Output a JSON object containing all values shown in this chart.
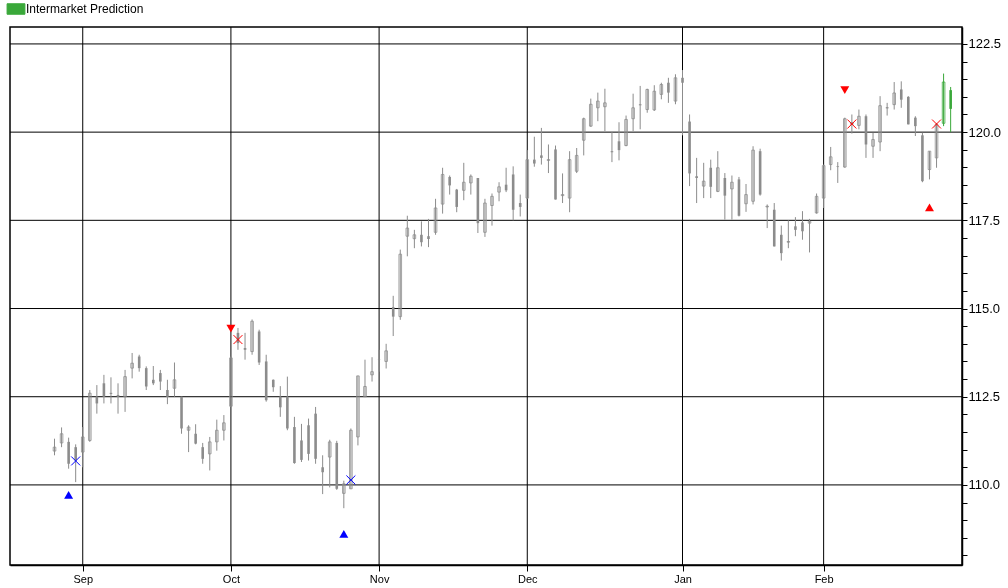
{
  "chart_data": {
    "type": "candlestick",
    "ylim": [
      107.73,
      122.98
    ],
    "categories": [
      null,
      null,
      null,
      null,
      "Sep",
      null,
      null,
      null,
      null,
      null,
      null,
      null,
      null,
      null,
      null,
      null,
      null,
      null,
      null,
      null,
      null,
      null,
      null,
      null,
      null,
      "Oct",
      null,
      null,
      null,
      null,
      null,
      null,
      null,
      null,
      null,
      null,
      null,
      null,
      null,
      null,
      null,
      null,
      null,
      null,
      null,
      null,
      "Nov",
      null,
      null,
      null,
      null,
      null,
      null,
      null,
      null,
      null,
      null,
      null,
      null,
      null,
      null,
      null,
      null,
      null,
      null,
      null,
      null,
      "Dec",
      null,
      null,
      null,
      null,
      null,
      null,
      null,
      null,
      null,
      null,
      null,
      null,
      null,
      null,
      null,
      null,
      null,
      null,
      null,
      null,
      null,
      "Jan",
      null,
      null,
      null,
      null,
      null,
      null,
      null,
      null,
      null,
      null,
      null,
      null,
      null,
      null,
      null,
      null,
      null,
      null,
      null,
      "Feb",
      null,
      null,
      null,
      null,
      null,
      null,
      null,
      null,
      null,
      null,
      null,
      null,
      null,
      null,
      null,
      null,
      null,
      null
    ],
    "yticks": [
      {
        "value": 108,
        "label": null
      },
      {
        "value": 108.5,
        "label": null
      },
      {
        "value": 109,
        "label": null
      },
      {
        "value": 109.5,
        "label": null
      },
      {
        "value": 110,
        "label": "110.0"
      },
      {
        "value": 110.5,
        "label": null
      },
      {
        "value": 111,
        "label": null
      },
      {
        "value": 111.5,
        "label": null
      },
      {
        "value": 112,
        "label": null
      },
      {
        "value": 112.5,
        "label": "112.5"
      },
      {
        "value": 113,
        "label": null
      },
      {
        "value": 113.5,
        "label": null
      },
      {
        "value": 114,
        "label": null
      },
      {
        "value": 114.5,
        "label": null
      },
      {
        "value": 115,
        "label": "115.0"
      },
      {
        "value": 115.5,
        "label": null
      },
      {
        "value": 116,
        "label": null
      },
      {
        "value": 116.5,
        "label": null
      },
      {
        "value": 117,
        "label": null
      },
      {
        "value": 117.5,
        "label": "117.5"
      },
      {
        "value": 118,
        "label": null
      },
      {
        "value": 118.5,
        "label": null
      },
      {
        "value": 119,
        "label": null
      },
      {
        "value": 119.5,
        "label": null
      },
      {
        "value": 120,
        "label": "120.0"
      },
      {
        "value": 120.5,
        "label": null
      },
      {
        "value": 121,
        "label": null
      },
      {
        "value": 121.5,
        "label": null
      },
      {
        "value": 122,
        "label": null
      },
      {
        "value": 122.5,
        "label": "122.5"
      }
    ],
    "grid": true,
    "legend": "top left",
    "series": [
      {
        "type": "candlestick",
        "color": "#8c8c8c",
        "ohlc": [
          [
            110.96,
            111.31,
            110.84,
            111.07
          ],
          [
            111.19,
            111.63,
            111.07,
            111.45
          ],
          [
            111.22,
            111.34,
            110.46,
            110.6
          ],
          [
            111.07,
            111.15,
            110.08,
            110.69
          ],
          [
            110.93,
            111.64,
            110.5,
            111.36
          ],
          [
            111.26,
            112.69,
            111.22,
            112.6
          ],
          [
            112.5,
            112.83,
            112.02,
            112.31
          ],
          [
            112.88,
            113.12,
            112.31,
            112.5
          ],
          [
            112.61,
            113.05,
            112.31,
            112.58
          ],
          [
            112.55,
            112.88,
            112.02,
            112.5
          ],
          [
            112.5,
            113.26,
            112.07,
            113.07
          ],
          [
            113.31,
            113.74,
            113.02,
            113.45
          ],
          [
            113.64,
            113.69,
            113.21,
            113.31
          ],
          [
            113.31,
            113.36,
            112.69,
            112.79
          ],
          [
            112.98,
            113.37,
            112.83,
            112.88
          ],
          [
            113.17,
            113.26,
            112.69,
            112.93
          ],
          [
            112.69,
            112.98,
            112.29,
            112.5
          ],
          [
            112.74,
            113.47,
            112.5,
            112.98
          ],
          [
            112.5,
            112.5,
            111.45,
            111.6
          ],
          [
            111.55,
            111.69,
            110.93,
            111.64
          ],
          [
            111.45,
            111.72,
            111.15,
            111.17
          ],
          [
            111.07,
            111.19,
            110.6,
            110.74
          ],
          [
            110.88,
            111.36,
            110.41,
            111.22
          ],
          [
            111.22,
            111.85,
            110.97,
            111.55
          ],
          [
            111.55,
            111.98,
            111.26,
            111.76
          ],
          [
            112.23,
            113.64,
            112.21,
            113.6
          ],
          [
            114.31,
            114.45,
            113.83,
            114.02
          ],
          [
            113.88,
            114.31,
            113.55,
            113.83
          ],
          [
            113.78,
            114.69,
            113.69,
            114.64
          ],
          [
            114.35,
            114.4,
            113.4,
            113.47
          ],
          [
            113.5,
            113.69,
            112.36,
            112.4
          ],
          [
            112.98,
            112.99,
            112.64,
            112.77
          ],
          [
            112.5,
            112.8,
            111.93,
            112.2
          ],
          [
            112.5,
            113.07,
            111.55,
            111.6
          ],
          [
            111.64,
            111.93,
            110.6,
            110.62
          ],
          [
            111.26,
            111.73,
            110.65,
            110.71
          ],
          [
            111.69,
            111.88,
            110.69,
            110.88
          ],
          [
            112.02,
            112.21,
            110.6,
            110.74
          ],
          [
            110.5,
            110.84,
            109.74,
            110.36
          ],
          [
            110.79,
            111.28,
            109.93,
            111.22
          ],
          [
            111.19,
            111.25,
            109.86,
            109.89
          ],
          [
            109.76,
            110.12,
            109.34,
            110.03
          ],
          [
            109.89,
            111.6,
            109.89,
            111.55
          ],
          [
            111.36,
            113.09,
            111.12,
            113.09
          ],
          [
            112.5,
            113.55,
            112.5,
            112.79
          ],
          [
            113.12,
            113.62,
            112.93,
            113.21
          ],
          [
            113.56,
            113.83,
            113.21,
            113.55
          ],
          [
            113.5,
            114.0,
            113.3,
            113.8
          ],
          [
            115.04,
            115.36,
            114.22,
            114.77
          ],
          [
            114.77,
            116.67,
            114.68,
            116.54
          ],
          [
            117.05,
            117.63,
            116.48,
            117.28
          ],
          [
            116.98,
            117.23,
            116.71,
            117.09
          ],
          [
            117.09,
            117.47,
            116.76,
            116.88
          ],
          [
            117.05,
            117.54,
            116.74,
            116.97
          ],
          [
            117.16,
            118.11,
            117.09,
            117.85
          ],
          [
            117.96,
            118.99,
            117.69,
            118.8
          ],
          [
            118.73,
            118.77,
            118.23,
            118.49
          ],
          [
            118.37,
            118.39,
            117.73,
            117.88
          ],
          [
            118.35,
            119.13,
            118.07,
            118.58
          ],
          [
            118.56,
            118.8,
            118.23,
            118.75
          ],
          [
            118.7,
            118.7,
            117.14,
            117.42
          ],
          [
            117.16,
            118.11,
            117.03,
            117.99
          ],
          [
            117.92,
            118.26,
            117.35,
            118.18
          ],
          [
            118.3,
            118.58,
            118.04,
            118.45
          ],
          [
            118.51,
            118.99,
            118.3,
            118.35
          ],
          [
            118.8,
            119.03,
            117.5,
            117.8
          ],
          [
            117.99,
            118.23,
            117.61,
            117.88
          ],
          [
            118.13,
            119.49,
            118.11,
            119.22
          ],
          [
            119.22,
            119.87,
            119.02,
            119.11
          ],
          [
            119.34,
            120.12,
            119.08,
            119.27
          ],
          [
            119.2,
            119.65,
            118.84,
            119.22
          ],
          [
            119.51,
            119.62,
            118.09,
            118.09
          ],
          [
            118.2,
            118.83,
            117.99,
            118.23
          ],
          [
            118.13,
            119.46,
            117.73,
            119.22
          ],
          [
            118.89,
            119.55,
            118.84,
            119.34
          ],
          [
            119.77,
            120.41,
            119.34,
            120.38
          ],
          [
            120.17,
            120.95,
            120.15,
            120.79
          ],
          [
            120.69,
            121.12,
            120.31,
            120.88
          ],
          [
            120.72,
            121.23,
            120.03,
            120.83
          ],
          [
            119.46,
            120.0,
            119.15,
            119.43
          ],
          [
            119.74,
            120.28,
            119.2,
            119.49
          ],
          [
            119.62,
            120.47,
            119.6,
            120.36
          ],
          [
            120.38,
            121.09,
            120.03,
            120.69
          ],
          [
            120.79,
            121.31,
            120.08,
            120.76
          ],
          [
            120.64,
            121.23,
            120.55,
            121.21
          ],
          [
            120.63,
            121.33,
            120.6,
            121.16
          ],
          [
            121.07,
            121.4,
            120.93,
            121.35
          ],
          [
            121.4,
            121.54,
            120.83,
            121.12
          ],
          [
            120.88,
            121.64,
            120.79,
            121.54
          ],
          [
            121.54,
            121.76,
            119.91,
            121.4
          ],
          [
            120.3,
            120.5,
            118.47,
            118.83
          ],
          [
            118.75,
            119.27,
            117.99,
            118.7
          ],
          [
            118.47,
            119.13,
            118.13,
            118.61
          ],
          [
            118.99,
            119.22,
            118.13,
            118.45
          ],
          [
            118.32,
            119.46,
            118.3,
            118.99
          ],
          [
            118.7,
            118.84,
            117.52,
            118.2
          ],
          [
            118.39,
            118.77,
            117.52,
            118.58
          ],
          [
            118.66,
            118.73,
            117.61,
            117.63
          ],
          [
            117.97,
            118.53,
            117.74,
            118.23
          ],
          [
            118.04,
            119.6,
            117.95,
            119.49
          ],
          [
            119.46,
            119.53,
            118.2,
            118.23
          ],
          [
            117.88,
            117.95,
            117.28,
            117.9
          ],
          [
            117.8,
            117.99,
            116.76,
            116.76
          ],
          [
            117.09,
            117.35,
            116.36,
            116.57
          ],
          [
            116.88,
            117.5,
            116.71,
            116.9
          ],
          [
            117.33,
            117.59,
            117.05,
            117.23
          ],
          [
            117.44,
            117.76,
            116.95,
            117.19
          ],
          [
            117.42,
            117.54,
            116.59,
            117.47
          ],
          [
            117.71,
            118.26,
            117.69,
            118.18
          ],
          [
            118.13,
            119.08,
            117.85,
            119.05
          ],
          [
            119.08,
            119.58,
            118.92,
            119.3
          ],
          [
            119.03,
            119.15,
            118.56,
            119.01
          ],
          [
            119.01,
            120.41,
            118.99,
            120.38
          ],
          [
            120.22,
            120.5,
            119.96,
            120.27
          ],
          [
            120.19,
            120.64,
            120.08,
            120.45
          ],
          [
            120.45,
            120.5,
            119.27,
            119.65
          ],
          [
            119.6,
            119.98,
            119.27,
            119.79
          ],
          [
            119.72,
            121.02,
            119.46,
            120.75
          ],
          [
            120.69,
            120.83,
            120.47,
            120.69
          ],
          [
            120.78,
            121.42,
            120.64,
            121.11
          ],
          [
            121.21,
            121.44,
            120.69,
            120.92
          ],
          [
            121.0,
            121.02,
            120.22,
            120.22
          ],
          [
            120.41,
            120.45,
            119.89,
            120.17
          ],
          [
            119.91,
            119.98,
            118.58,
            118.61
          ],
          [
            118.94,
            119.46,
            118.66,
            119.46
          ],
          [
            119.27,
            120.26,
            118.99,
            120.22
          ],
          null,
          null
        ]
      },
      {
        "type": "candlestick",
        "name": "Intermarket Prediction",
        "color": "#3aa83a",
        "ohlc": [
          null,
          null,
          null,
          null,
          null,
          null,
          null,
          null,
          null,
          null,
          null,
          null,
          null,
          null,
          null,
          null,
          null,
          null,
          null,
          null,
          null,
          null,
          null,
          null,
          null,
          null,
          null,
          null,
          null,
          null,
          null,
          null,
          null,
          null,
          null,
          null,
          null,
          null,
          null,
          null,
          null,
          null,
          null,
          null,
          null,
          null,
          null,
          null,
          null,
          null,
          null,
          null,
          null,
          null,
          null,
          null,
          null,
          null,
          null,
          null,
          null,
          null,
          null,
          null,
          null,
          null,
          null,
          null,
          null,
          null,
          null,
          null,
          null,
          null,
          null,
          null,
          null,
          null,
          null,
          null,
          null,
          null,
          null,
          null,
          null,
          null,
          null,
          null,
          null,
          null,
          null,
          null,
          null,
          null,
          null,
          null,
          null,
          null,
          null,
          null,
          null,
          null,
          null,
          null,
          null,
          null,
          null,
          null,
          null,
          null,
          null,
          null,
          null,
          null,
          null,
          null,
          null,
          null,
          null,
          null,
          null,
          null,
          null,
          null,
          null,
          null,
          [
            120.25,
            121.66,
            120.17,
            121.42
          ],
          [
            121.19,
            121.28,
            120.0,
            120.66
          ]
        ]
      },
      {
        "type": "scatter",
        "marker": "triangle",
        "color": "#0000ff",
        "values": [
          null,
          null,
          109.72,
          null,
          null,
          null,
          null,
          null,
          null,
          null,
          null,
          null,
          null,
          null,
          null,
          null,
          null,
          null,
          null,
          null,
          null,
          null,
          null,
          null,
          null,
          null,
          null,
          null,
          null,
          null,
          null,
          null,
          null,
          null,
          null,
          null,
          null,
          null,
          null,
          null,
          null,
          108.61,
          null,
          null,
          null,
          null,
          null,
          null,
          null,
          null,
          null,
          null,
          null,
          null,
          null,
          null,
          null,
          null,
          null,
          null,
          null,
          null,
          null,
          null,
          null,
          null,
          null,
          null,
          null,
          null,
          null,
          null,
          null,
          null,
          null,
          null,
          null,
          null,
          null,
          null,
          null,
          null,
          null,
          null,
          null,
          null,
          null,
          null,
          null,
          null,
          null,
          null,
          null,
          null,
          null,
          null,
          null,
          null,
          null,
          null,
          null,
          null,
          null,
          null,
          null,
          null,
          null,
          null,
          null,
          null,
          null,
          null,
          null,
          null,
          null,
          null,
          null,
          null,
          null,
          null,
          null,
          null,
          null,
          null,
          null,
          null,
          null,
          null
        ]
      },
      {
        "type": "scatter",
        "marker": "cross",
        "color": "#0000ff",
        "values": [
          null,
          null,
          null,
          110.68,
          null,
          null,
          null,
          null,
          null,
          null,
          null,
          null,
          null,
          null,
          null,
          null,
          null,
          null,
          null,
          null,
          null,
          null,
          null,
          null,
          null,
          null,
          null,
          null,
          null,
          null,
          null,
          null,
          null,
          null,
          null,
          null,
          null,
          null,
          null,
          null,
          null,
          null,
          110.14,
          null,
          null,
          null,
          null,
          null,
          null,
          null,
          null,
          null,
          null,
          null,
          null,
          null,
          null,
          null,
          null,
          null,
          null,
          null,
          null,
          null,
          null,
          null,
          null,
          null,
          null,
          null,
          null,
          null,
          null,
          null,
          null,
          null,
          null,
          null,
          null,
          null,
          null,
          null,
          null,
          null,
          null,
          null,
          null,
          null,
          null,
          null,
          null,
          null,
          null,
          null,
          null,
          null,
          null,
          null,
          null,
          null,
          null,
          null,
          null,
          null,
          null,
          null,
          null,
          null,
          null,
          null,
          null,
          null,
          null,
          null,
          null,
          null,
          null,
          null,
          null,
          null,
          null,
          null,
          null,
          null,
          null,
          null,
          null,
          null
        ]
      },
      {
        "type": "scatter",
        "marker": "triangle-down",
        "color": "#ff0000",
        "values": [
          null,
          null,
          null,
          null,
          null,
          null,
          null,
          null,
          null,
          null,
          null,
          null,
          null,
          null,
          null,
          null,
          null,
          null,
          null,
          null,
          null,
          null,
          null,
          null,
          null,
          114.43,
          null,
          null,
          null,
          null,
          null,
          null,
          null,
          null,
          null,
          null,
          null,
          null,
          null,
          null,
          null,
          null,
          null,
          null,
          null,
          null,
          null,
          null,
          null,
          null,
          null,
          null,
          null,
          null,
          null,
          null,
          null,
          null,
          null,
          null,
          null,
          null,
          null,
          null,
          null,
          null,
          null,
          null,
          null,
          null,
          null,
          null,
          null,
          null,
          null,
          null,
          null,
          null,
          null,
          null,
          null,
          null,
          null,
          null,
          null,
          null,
          null,
          null,
          null,
          null,
          null,
          null,
          null,
          null,
          null,
          null,
          null,
          null,
          null,
          null,
          null,
          null,
          null,
          null,
          null,
          null,
          null,
          null,
          null,
          null,
          null,
          null,
          121.19,
          null,
          null,
          null,
          null,
          null,
          null,
          null,
          null,
          null,
          null,
          null,
          null,
          null,
          null,
          null
        ]
      },
      {
        "type": "scatter",
        "marker": "cross",
        "color": "#ff0000",
        "values": [
          null,
          null,
          null,
          null,
          null,
          null,
          null,
          null,
          null,
          null,
          null,
          null,
          null,
          null,
          null,
          null,
          null,
          null,
          null,
          null,
          null,
          null,
          null,
          null,
          null,
          null,
          114.12,
          null,
          null,
          null,
          null,
          null,
          null,
          null,
          null,
          null,
          null,
          null,
          null,
          null,
          null,
          null,
          null,
          null,
          null,
          null,
          null,
          null,
          null,
          null,
          null,
          null,
          null,
          null,
          null,
          null,
          null,
          null,
          null,
          null,
          null,
          null,
          null,
          null,
          null,
          null,
          null,
          null,
          null,
          null,
          null,
          null,
          null,
          null,
          null,
          null,
          null,
          null,
          null,
          null,
          null,
          null,
          null,
          null,
          null,
          null,
          null,
          null,
          null,
          null,
          null,
          null,
          null,
          null,
          null,
          null,
          null,
          null,
          null,
          null,
          null,
          null,
          null,
          null,
          null,
          null,
          null,
          null,
          null,
          null,
          null,
          null,
          null,
          120.23,
          null,
          null,
          null,
          null,
          null,
          null,
          null,
          null,
          null,
          null,
          null,
          120.23,
          null,
          null
        ]
      },
      {
        "type": "scatter",
        "marker": "triangle",
        "color": "#ff0000",
        "values": [
          null,
          null,
          null,
          null,
          null,
          null,
          null,
          null,
          null,
          null,
          null,
          null,
          null,
          null,
          null,
          null,
          null,
          null,
          null,
          null,
          null,
          null,
          null,
          null,
          null,
          null,
          null,
          null,
          null,
          null,
          null,
          null,
          null,
          null,
          null,
          null,
          null,
          null,
          null,
          null,
          null,
          null,
          null,
          null,
          null,
          null,
          null,
          null,
          null,
          null,
          null,
          null,
          null,
          null,
          null,
          null,
          null,
          null,
          null,
          null,
          null,
          null,
          null,
          null,
          null,
          null,
          null,
          null,
          null,
          null,
          null,
          null,
          null,
          null,
          null,
          null,
          null,
          null,
          null,
          null,
          null,
          null,
          null,
          null,
          null,
          null,
          null,
          null,
          null,
          null,
          null,
          null,
          null,
          null,
          null,
          null,
          null,
          null,
          null,
          null,
          null,
          null,
          null,
          null,
          null,
          null,
          null,
          null,
          null,
          null,
          null,
          null,
          null,
          null,
          null,
          null,
          null,
          null,
          null,
          null,
          null,
          null,
          null,
          null,
          117.87,
          null,
          null,
          null
        ]
      }
    ]
  }
}
